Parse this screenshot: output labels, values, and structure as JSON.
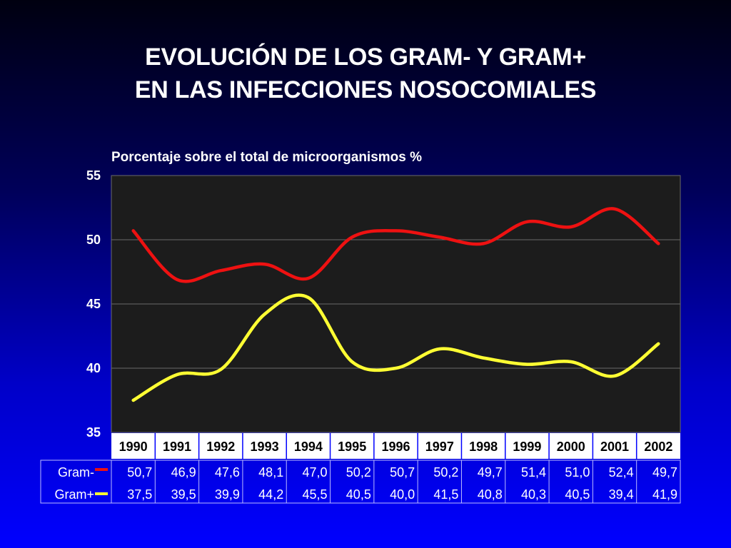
{
  "slide": {
    "title_line1": "EVOLUCIÓN DE LOS GRAM- Y GRAM+",
    "title_line2": "EN LAS INFECCIONES NOSOCOMIALES",
    "background_top": "#000010",
    "background_bottom": "#0000ff"
  },
  "chart_data": {
    "type": "line",
    "subtitle": "Porcentaje sobre el total de microorganismos %",
    "categories": [
      "1990",
      "1991",
      "1992",
      "1993",
      "1994",
      "1995",
      "1996",
      "1997",
      "1998",
      "1999",
      "2000",
      "2001",
      "2002"
    ],
    "ylim": [
      35,
      55
    ],
    "yticks": [
      35,
      40,
      45,
      50,
      55
    ],
    "grid": true,
    "plot_background": "#1c1c1c",
    "series": [
      {
        "name": "Gram-",
        "color": "#ee1111",
        "values": [
          50.7,
          46.9,
          47.6,
          48.1,
          47.0,
          50.2,
          50.7,
          50.2,
          49.7,
          51.4,
          51.0,
          52.4,
          49.7
        ],
        "labels": [
          "50,7",
          "46,9",
          "47,6",
          "48,1",
          "47,0",
          "50,2",
          "50,7",
          "50,2",
          "49,7",
          "51,4",
          "51,0",
          "52,4",
          "49,7"
        ]
      },
      {
        "name": "Gram+",
        "color": "#ffff33",
        "values": [
          37.5,
          39.5,
          39.9,
          44.2,
          45.5,
          40.5,
          40.0,
          41.5,
          40.8,
          40.3,
          40.5,
          39.4,
          41.9
        ],
        "labels": [
          "37,5",
          "39,5",
          "39,9",
          "44,2",
          "45,5",
          "40,5",
          "40,0",
          "41,5",
          "40,8",
          "40,3",
          "40,5",
          "39,4",
          "41,9"
        ]
      }
    ]
  }
}
